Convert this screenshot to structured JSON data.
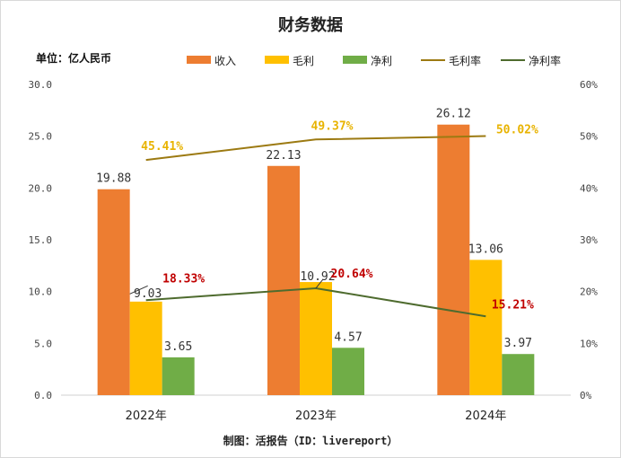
{
  "chart_data": {
    "type": "bar",
    "title": "财务数据",
    "unit_label": "单位：亿人民币",
    "source": "制图：活报告（ID：livereport）",
    "categories": [
      "2022年",
      "2023年",
      "2024年"
    ],
    "series": [
      {
        "name": "收入",
        "kind": "bar",
        "axis": "left",
        "color": "#ED7D31",
        "values": [
          19.88,
          22.13,
          26.12
        ],
        "labels": [
          "19.88",
          "22.13",
          "26.12"
        ]
      },
      {
        "name": "毛利",
        "kind": "bar",
        "axis": "left",
        "color": "#FFC000",
        "values": [
          9.03,
          10.92,
          13.06
        ],
        "labels": [
          "9.03",
          "10.92",
          "13.06"
        ]
      },
      {
        "name": "净利",
        "kind": "bar",
        "axis": "left",
        "color": "#70AD47",
        "values": [
          3.65,
          4.57,
          3.97
        ],
        "labels": [
          "3.65",
          "4.57",
          "3.97"
        ]
      },
      {
        "name": "毛利率",
        "kind": "line",
        "axis": "right",
        "color": "#9C7A12",
        "label_color": "#E8B300",
        "values": [
          45.41,
          49.37,
          50.02
        ],
        "labels": [
          "45.41%",
          "49.37%",
          "50.02%"
        ]
      },
      {
        "name": "净利率",
        "kind": "line",
        "axis": "right",
        "color": "#4E6B2E",
        "label_color": "#C00000",
        "values": [
          18.33,
          20.64,
          15.21
        ],
        "labels": [
          "18.33%",
          "20.64%",
          "15.21%"
        ]
      }
    ],
    "left_axis": {
      "min": 0,
      "max": 30,
      "ticks": [
        "0.0",
        "5.0",
        "10.0",
        "15.0",
        "20.0",
        "25.0",
        "30.0"
      ]
    },
    "right_axis": {
      "min": 0,
      "max": 60,
      "ticks": [
        "0%",
        "10%",
        "20%",
        "30%",
        "40%",
        "50%",
        "60%"
      ]
    },
    "legend_position": "top-right",
    "grid": false
  }
}
